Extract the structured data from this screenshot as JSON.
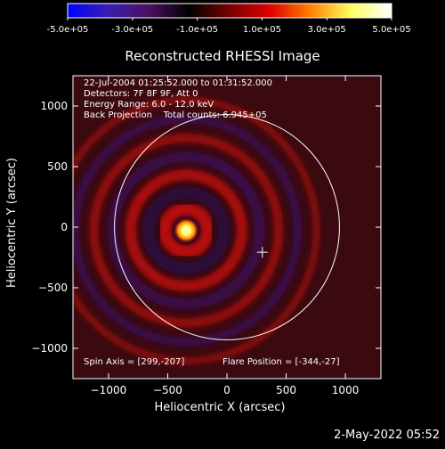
{
  "chart_data": {
    "type": "heatmap",
    "title": "Reconstructed RHESSI Image",
    "xlabel": "Heliocentric X (arcsec)",
    "ylabel": "Heliocentric Y (arcsec)",
    "xlim": [
      -1300,
      1300
    ],
    "ylim": [
      -1250,
      1250
    ],
    "xticks": [
      -1000,
      -500,
      0,
      500,
      1000
    ],
    "yticks": [
      -1000,
      -500,
      0,
      500,
      1000
    ],
    "colorbar": {
      "range": [
        -500000,
        500000
      ],
      "tick_labels": [
        "-5.0e+05",
        "-3.0e+05",
        "-1.0e+05",
        "1.0e+05",
        "3.0e+05",
        "5.0e+05"
      ],
      "colors": [
        "#0000ff",
        "#3b1fb0",
        "#4a1060",
        "#000000",
        "#7a0000",
        "#e00000",
        "#ff8000",
        "#ffff60",
        "#ffffff"
      ]
    },
    "source": {
      "x": -344,
      "y": -27,
      "peak": 500000
    },
    "ring_radii_arcsec": [
      180,
      320,
      470,
      620,
      780,
      940,
      1100
    ],
    "solar_limb": {
      "center_x": 0,
      "center_y": 0,
      "radius_arcsec": 950
    },
    "spin_axis": {
      "x": 299,
      "y": -207
    },
    "annotations": {
      "time_range": "22-Jul-2004 01:25:52.000 to 01:31:52.000",
      "detectors": "Detectors: 7F 8F 9F, Att 0",
      "energy_range": "Energy Range: 6.0 - 12.0 keV",
      "method": "Back Projection",
      "total_counts": "Total counts: 6.945+05",
      "spin_axis_label": "Spin Axis = [299,-207]",
      "flare_position_label": "Flare Position = [-344,-27]"
    }
  },
  "footer": {
    "date_stamp": "2-May-2022 05:52"
  }
}
